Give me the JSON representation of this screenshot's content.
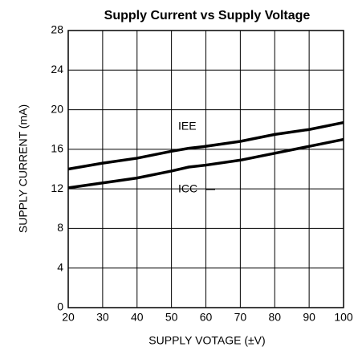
{
  "chart_data": {
    "type": "line",
    "title": "Supply Current vs Supply Voltage",
    "xlabel": "SUPPLY VOTAGE (±V)",
    "ylabel": "SUPPLY CURRENT (mA)",
    "x": [
      20,
      30,
      40,
      50,
      55,
      60,
      70,
      80,
      90,
      100
    ],
    "series": [
      {
        "name": "IEE",
        "color": "#000000",
        "values": [
          14.0,
          14.6,
          15.1,
          15.8,
          16.1,
          16.3,
          16.8,
          17.5,
          18.0,
          18.7
        ]
      },
      {
        "name": "ICC",
        "color": "#000000",
        "values": [
          12.1,
          12.6,
          13.1,
          13.8,
          14.2,
          14.4,
          14.9,
          15.6,
          16.3,
          17.0
        ]
      }
    ],
    "xlim": [
      20,
      100
    ],
    "xticks": [
      20,
      30,
      40,
      50,
      60,
      70,
      80,
      90,
      100
    ],
    "ylim": [
      0,
      28
    ],
    "yticks": [
      0,
      4,
      8,
      12,
      16,
      20,
      24,
      28
    ],
    "grid": true
  }
}
